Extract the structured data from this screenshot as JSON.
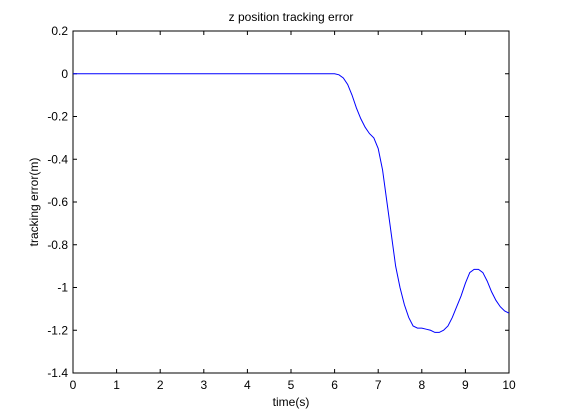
{
  "chart_data": {
    "type": "line",
    "title": "z position tracking error",
    "xlabel": "time(s)",
    "ylabel": "tracking error(m)",
    "xlim": [
      0,
      10
    ],
    "ylim": [
      -1.4,
      0.2
    ],
    "xticks": [
      0,
      1,
      2,
      3,
      4,
      5,
      6,
      7,
      8,
      9,
      10
    ],
    "yticks": [
      0.2,
      0,
      -0.2,
      -0.4,
      -0.6,
      -0.8,
      -1,
      -1.2,
      -1.4
    ],
    "xtick_labels": [
      "0",
      "1",
      "2",
      "3",
      "4",
      "5",
      "6",
      "7",
      "8",
      "9",
      "10"
    ],
    "ytick_labels": [
      "0.2",
      "0",
      "-0.2",
      "-0.4",
      "-0.6",
      "-0.8",
      "-1",
      "-1.2",
      "-1.4"
    ],
    "grid": false,
    "line_color": "#0000ff",
    "series": [
      {
        "x": [
          0,
          1,
          2,
          3,
          4,
          5,
          6.0,
          6.1,
          6.2,
          6.3,
          6.4,
          6.5,
          6.6,
          6.7,
          6.8,
          6.9,
          7.0,
          7.1,
          7.2,
          7.3,
          7.4,
          7.5,
          7.6,
          7.7,
          7.8,
          7.9,
          8.0,
          8.1,
          8.2,
          8.3,
          8.4,
          8.5,
          8.6,
          8.7,
          8.8,
          8.9,
          9.0,
          9.1,
          9.2,
          9.3,
          9.4,
          9.5,
          9.6,
          9.7,
          9.8,
          9.9,
          10.0
        ],
        "y": [
          0,
          0,
          0,
          0,
          0,
          0,
          0,
          -0.005,
          -0.02,
          -0.05,
          -0.1,
          -0.16,
          -0.21,
          -0.25,
          -0.28,
          -0.3,
          -0.35,
          -0.45,
          -0.6,
          -0.75,
          -0.9,
          -1.0,
          -1.08,
          -1.14,
          -1.18,
          -1.19,
          -1.19,
          -1.195,
          -1.2,
          -1.21,
          -1.21,
          -1.2,
          -1.18,
          -1.14,
          -1.09,
          -1.04,
          -0.98,
          -0.93,
          -0.915,
          -0.915,
          -0.93,
          -0.97,
          -1.02,
          -1.06,
          -1.09,
          -1.11,
          -1.12
        ]
      }
    ]
  }
}
